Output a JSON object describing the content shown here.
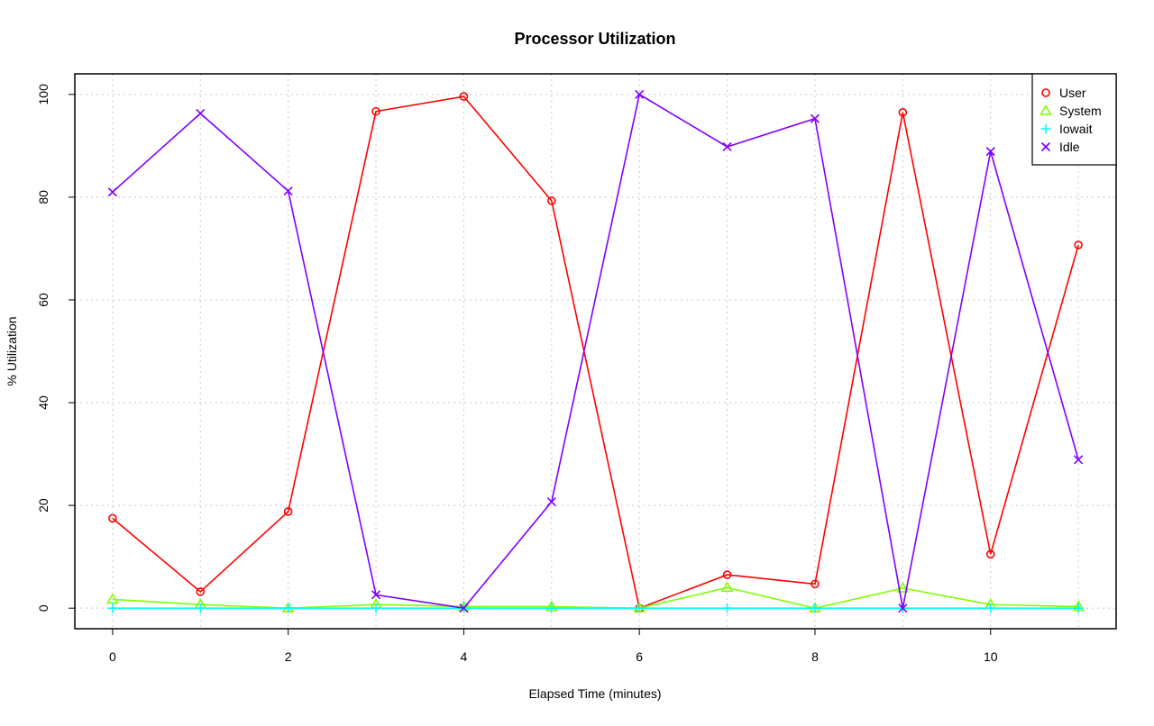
{
  "chart_data": {
    "type": "line",
    "title": "Processor Utilization",
    "xlabel": "Elapsed Time (minutes)",
    "ylabel": "% Utilization",
    "xlim": [
      -0.43,
      11.43
    ],
    "ylim": [
      -4,
      104
    ],
    "xticks": [
      0,
      2,
      4,
      6,
      8,
      10
    ],
    "yticks": [
      0,
      20,
      40,
      60,
      80,
      100
    ],
    "grid": true,
    "legend_position": "top-right",
    "x": [
      0,
      1,
      2,
      3,
      4,
      5,
      6,
      7,
      8,
      9,
      10,
      11
    ],
    "series": [
      {
        "name": "User",
        "color": "#ff0000",
        "marker": "circle",
        "values": [
          17.5,
          3.2,
          18.8,
          96.7,
          99.6,
          79.3,
          0.0,
          6.5,
          4.7,
          96.5,
          10.5,
          70.7
        ]
      },
      {
        "name": "System",
        "color": "#80ff00",
        "marker": "triangle",
        "values": [
          1.7,
          0.7,
          0.0,
          0.7,
          0.3,
          0.3,
          0.0,
          4.0,
          0.0,
          3.9,
          0.7,
          0.3
        ]
      },
      {
        "name": "Iowait",
        "color": "#00ffff",
        "marker": "plus",
        "values": [
          0,
          0,
          0,
          0,
          0,
          0,
          0,
          0,
          0,
          0,
          0,
          0
        ]
      },
      {
        "name": "Idle",
        "color": "#8000ff",
        "marker": "cross",
        "values": [
          81.0,
          96.3,
          81.2,
          2.6,
          0.0,
          20.7,
          100.0,
          89.8,
          95.3,
          0.0,
          88.9,
          28.9
        ]
      }
    ]
  }
}
